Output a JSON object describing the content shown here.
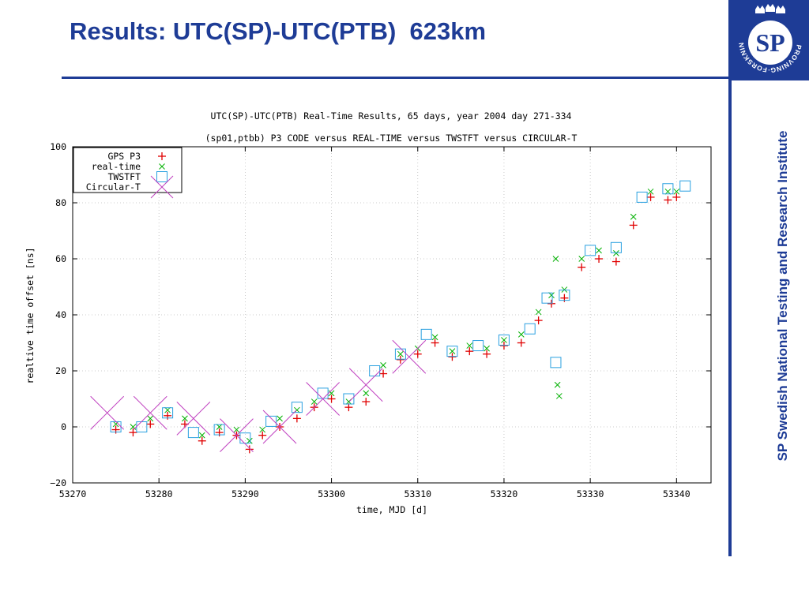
{
  "slide": {
    "title": "Results: UTC(SP)-UTC(PTB)  623km",
    "side_text": "SP Swedish National Testing and Research Institute",
    "logo": {
      "text": "SP",
      "ring_text": "PROVNING·FORSKNING"
    },
    "colors": {
      "brand": "#1e3c96"
    }
  },
  "chart_data": {
    "type": "scatter",
    "title": "UTC(SP)-UTC(PTB) Real-Time Results, 65 days, year 2004 day 271-334",
    "subtitle": "(sp01,ptbb) P3 CODE versus REAL-TIME versus TWSTFT versus CIRCULAR-T",
    "xlabel": "time, MJD [d]",
    "ylabel": "realtive time offset [ns]",
    "xlim": [
      53270,
      53344
    ],
    "ylim": [
      -20,
      100
    ],
    "xticks": [
      53270,
      53280,
      53290,
      53300,
      53310,
      53320,
      53330,
      53340
    ],
    "yticks": [
      -20,
      0,
      20,
      40,
      60,
      80,
      100
    ],
    "xtick_labels": [
      "53270",
      "53280",
      "53290",
      "53300",
      "53310",
      "53320",
      "53330",
      "53340"
    ],
    "ytick_labels": [
      "−20",
      "0",
      "20",
      "40",
      "60",
      "80",
      "100"
    ],
    "grid": true,
    "legend_position": "top-left",
    "series": [
      {
        "name": "GPS P3",
        "marker": "plus",
        "color": "#e00000",
        "x": [
          53275,
          53277,
          53279,
          53281,
          53283,
          53285,
          53287,
          53289,
          53290.5,
          53292,
          53294,
          53296,
          53298,
          53300,
          53302,
          53304,
          53306,
          53308,
          53310,
          53312,
          53314,
          53316,
          53318,
          53320,
          53322,
          53324,
          53325.5,
          53327,
          53329,
          53331,
          53333,
          53335,
          53337,
          53339,
          53340
        ],
        "y": [
          -1,
          -2,
          1,
          4,
          1,
          -5,
          -2,
          -3,
          -8,
          -3,
          0,
          3,
          7,
          10,
          7,
          9,
          19,
          24,
          26,
          30,
          25,
          27,
          26,
          29,
          30,
          38,
          44,
          46,
          57,
          60,
          59,
          72,
          82,
          81,
          82
        ]
      },
      {
        "name": "real-time",
        "marker": "x",
        "color": "#00b000",
        "x": [
          53275,
          53277,
          53279,
          53281,
          53283,
          53285,
          53287,
          53289,
          53290.5,
          53292,
          53294,
          53296,
          53298,
          53300,
          53302,
          53304,
          53306,
          53308,
          53310,
          53312,
          53314,
          53316,
          53318,
          53320,
          53322,
          53324,
          53325.5,
          53326,
          53326.2,
          53326.4,
          53327,
          53329,
          53331,
          53333,
          53335,
          53337,
          53339,
          53340
        ],
        "y": [
          1,
          0,
          3,
          6,
          3,
          -3,
          0,
          -1,
          -5,
          -1,
          3,
          6,
          9,
          12,
          9,
          12,
          22,
          26,
          28,
          32,
          27,
          29,
          28,
          31,
          33,
          41,
          47,
          60,
          15,
          11,
          49,
          60,
          63,
          62,
          75,
          84,
          84,
          84
        ]
      },
      {
        "name": "TWSTFT",
        "marker": "square",
        "color": "#2aa0e0",
        "x": [
          53275,
          53278,
          53281,
          53284,
          53287,
          53290,
          53293,
          53296,
          53299,
          53302,
          53305,
          53308,
          53311,
          53314,
          53317,
          53320,
          53323,
          53325,
          53326,
          53327,
          53330,
          53333,
          53336,
          53339,
          53341
        ],
        "y": [
          0,
          0,
          5,
          -2,
          -1,
          -4,
          2,
          7,
          12,
          10,
          20,
          26,
          33,
          27,
          29,
          31,
          35,
          46,
          23,
          47,
          63,
          64,
          82,
          85,
          86
        ]
      },
      {
        "name": "Circular-T",
        "marker": "x",
        "color": "#c040c0",
        "x": [
          53274,
          53279,
          53284,
          53289,
          53294,
          53299,
          53304,
          53309
        ],
        "y": [
          5,
          5,
          3,
          -3,
          0,
          10,
          15,
          25
        ]
      }
    ]
  }
}
